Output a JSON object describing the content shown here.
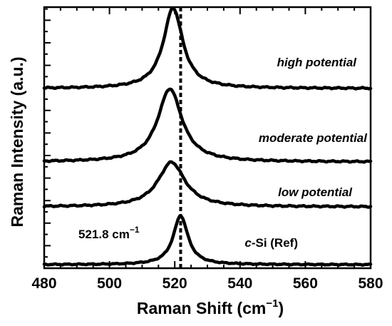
{
  "chart_data": {
    "type": "line",
    "xlabel": "Raman Shift",
    "xlabel_unit_base": "cm",
    "xlabel_unit_exp": "−1",
    "ylabel": "Raman Intensity (a.u.)",
    "xlim": [
      480,
      580
    ],
    "xticks": [
      "480",
      "500",
      "520",
      "540",
      "560",
      "580"
    ],
    "y_tick_labels": false,
    "reference_line": {
      "x": 521.8,
      "style": "dashed"
    },
    "annotation": {
      "base": "521.8 cm",
      "exp": "−1"
    },
    "series": [
      {
        "name": "high potential",
        "label_parts": [
          {
            "text": "high potential",
            "italic": true
          }
        ],
        "peak_center": 519.5,
        "peak_width": 3.6,
        "peak_height": 1.0,
        "baseline": 0.0,
        "x": [
          480,
          490,
          500,
          505,
          510,
          513,
          515,
          517,
          518,
          519,
          519.5,
          520,
          521,
          522,
          523,
          525,
          527,
          530,
          535,
          540,
          550,
          560,
          570,
          580
        ],
        "y": [
          0.0,
          0.0,
          0.02,
          0.04,
          0.09,
          0.2,
          0.38,
          0.66,
          0.83,
          0.96,
          1.0,
          0.98,
          0.9,
          0.79,
          0.65,
          0.4,
          0.2,
          0.08,
          0.03,
          0.02,
          0.0,
          0.0,
          0.0,
          0.0
        ]
      },
      {
        "name": "moderate potential",
        "label_parts": [
          {
            "text": "moderate potential",
            "italic": true
          }
        ],
        "peak_center": 518.5,
        "peak_width": 4.5,
        "peak_height": 0.96,
        "baseline": 0.0,
        "x": [
          480,
          490,
          500,
          505,
          510,
          513,
          515,
          517,
          518,
          518.5,
          519,
          520,
          522,
          524,
          526,
          528,
          530,
          535,
          540,
          550,
          560,
          570,
          580
        ],
        "y": [
          0.0,
          0.01,
          0.03,
          0.07,
          0.18,
          0.38,
          0.6,
          0.85,
          0.94,
          0.96,
          0.95,
          0.91,
          0.79,
          0.62,
          0.45,
          0.3,
          0.18,
          0.06,
          0.03,
          0.01,
          0.0,
          0.0,
          -0.01
        ]
      },
      {
        "name": "low potential",
        "label_parts": [
          {
            "text": "low potential",
            "italic": true
          }
        ],
        "peak_center": 519.0,
        "peak_width": 5.0,
        "peak_height": 0.57,
        "baseline": 0.0,
        "x": [
          480,
          490,
          500,
          505,
          510,
          513,
          515,
          517,
          519,
          520,
          522,
          524,
          526,
          528,
          530,
          535,
          540,
          550,
          560,
          570,
          580
        ],
        "y": [
          0.0,
          0.0,
          0.02,
          0.05,
          0.13,
          0.27,
          0.4,
          0.52,
          0.57,
          0.56,
          0.5,
          0.39,
          0.27,
          0.17,
          0.1,
          0.04,
          0.02,
          0.01,
          0.0,
          0.0,
          0.0
        ]
      },
      {
        "name": "c-Si (Ref)",
        "label_parts": [
          {
            "text": "c",
            "italic": true
          },
          {
            "text": "-Si (Ref)",
            "italic": false
          }
        ],
        "peak_center": 521.8,
        "peak_width": 2.7,
        "peak_height": 0.81,
        "baseline": 0.0,
        "x": [
          480,
          490,
          500,
          505,
          510,
          513,
          515,
          517,
          519,
          520,
          521,
          521.8,
          522.5,
          523,
          524,
          525,
          526,
          528,
          530,
          535,
          540,
          550,
          560,
          570,
          580
        ],
        "y": [
          0.0,
          0.0,
          0.01,
          0.01,
          0.03,
          0.05,
          0.09,
          0.2,
          0.47,
          0.64,
          0.77,
          0.81,
          0.78,
          0.72,
          0.55,
          0.37,
          0.22,
          0.08,
          0.04,
          0.01,
          0.0,
          0.0,
          0.0,
          0.0,
          0.0
        ]
      }
    ]
  }
}
